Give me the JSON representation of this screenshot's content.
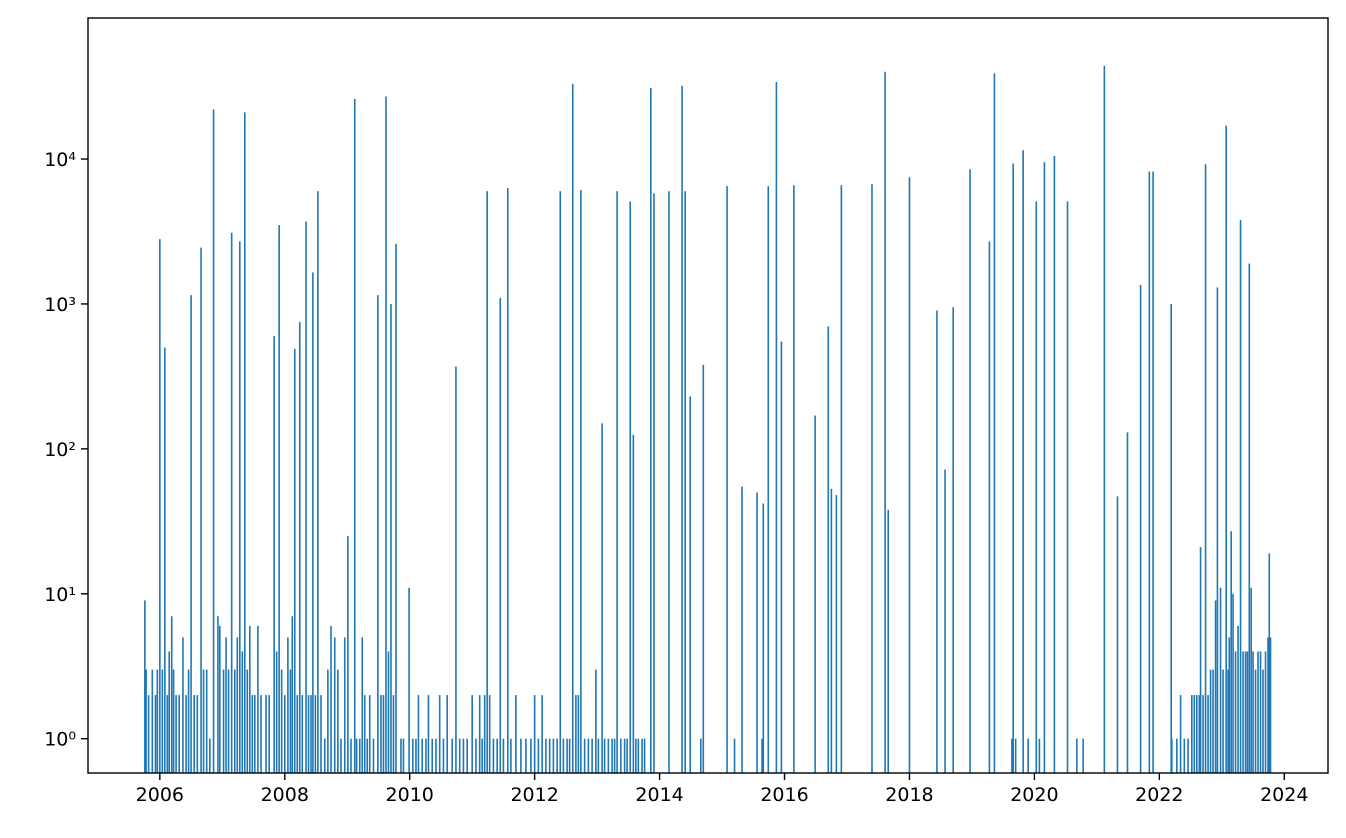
{
  "chart_data": {
    "type": "bar",
    "color": "#1f77b4",
    "log_y": true,
    "grid": false,
    "xlim": [
      2004.85,
      2024.7
    ],
    "xticks": [
      2006,
      2008,
      2010,
      2012,
      2014,
      2016,
      2018,
      2020,
      2022,
      2024
    ],
    "ylim": [
      0.58,
      94000
    ],
    "yticks": [
      {
        "value": 1,
        "label": "10⁰"
      },
      {
        "value": 10,
        "label": "10¹"
      },
      {
        "value": 100,
        "label": "10²"
      },
      {
        "value": 1000,
        "label": "10³"
      },
      {
        "value": 10000,
        "label": "10⁴"
      }
    ],
    "x": [
      2005.76,
      2006.0,
      2006.08,
      2006.19,
      2006.37,
      2006.5,
      2006.66,
      2006.86,
      2006.93,
      2007.15,
      2007.28,
      2007.36,
      2007.44,
      2007.57,
      2007.83,
      2007.91,
      2008.05,
      2008.16,
      2008.24,
      2008.34,
      2008.45,
      2008.53,
      2008.74,
      2009.01,
      2009.12,
      2009.24,
      2009.49,
      2009.62,
      2009.7,
      2009.78,
      2009.99,
      2010.74,
      2011.24,
      2011.45,
      2011.57,
      2012.41,
      2012.61,
      2012.74,
      2012.98,
      2013.08,
      2013.32,
      2013.53,
      2013.58,
      2013.86,
      2013.91,
      2014.15,
      2014.36,
      2014.41,
      2014.49,
      2014.7,
      2015.08,
      2015.32,
      2015.56,
      2015.66,
      2015.74,
      2015.87,
      2015.95,
      2016.15,
      2016.49,
      2016.7,
      2016.75,
      2016.83,
      2016.91,
      2017.4,
      2017.61,
      2017.66,
      2018.0,
      2018.44,
      2018.57,
      2018.7,
      2018.97,
      2019.28,
      2019.36,
      2019.66,
      2019.82,
      2020.03,
      2020.16,
      2020.32,
      2020.53,
      2021.12,
      2021.33,
      2021.49,
      2021.7,
      2021.84,
      2021.9,
      2022.19,
      2022.66,
      2022.74,
      2022.93,
      2022.98,
      2023.07,
      2023.15,
      2023.3,
      2023.44,
      2023.47,
      2023.76,
      2005.78,
      2005.82,
      2005.88,
      2005.93,
      2005.96,
      2006.04,
      2006.12,
      2006.15,
      2006.22,
      2006.26,
      2006.31,
      2006.42,
      2006.46,
      2006.55,
      2006.6,
      2006.7,
      2006.75,
      2006.8,
      2006.96,
      2007.02,
      2007.06,
      2007.1,
      2007.2,
      2007.24,
      2007.32,
      2007.4,
      2007.48,
      2007.52,
      2007.62,
      2007.7,
      2007.75,
      2007.87,
      2007.95,
      2008.0,
      2008.09,
      2008.12,
      2008.2,
      2008.28,
      2008.38,
      2008.42,
      2008.49,
      2008.58,
      2008.64,
      2008.69,
      2008.8,
      2008.85,
      2008.9,
      2008.96,
      2009.06,
      2009.15,
      2009.2,
      2009.28,
      2009.32,
      2009.36,
      2009.42,
      2009.54,
      2009.58,
      2009.66,
      2009.74,
      2009.86,
      2009.9,
      2010.05,
      2010.1,
      2010.14,
      2010.2,
      2010.26,
      2010.3,
      2010.36,
      2010.42,
      2010.48,
      2010.54,
      2010.6,
      2010.68,
      2010.8,
      2010.86,
      2010.92,
      2011.0,
      2011.06,
      2011.12,
      2011.16,
      2011.2,
      2011.28,
      2011.34,
      2011.4,
      2011.5,
      2011.62,
      2011.7,
      2011.78,
      2011.86,
      2011.94,
      2012.0,
      2012.06,
      2012.12,
      2012.18,
      2012.24,
      2012.3,
      2012.36,
      2012.46,
      2012.52,
      2012.56,
      2012.66,
      2012.7,
      2012.8,
      2012.86,
      2012.92,
      2013.02,
      2013.12,
      2013.18,
      2013.24,
      2013.28,
      2013.38,
      2013.44,
      2013.48,
      2013.62,
      2013.66,
      2013.72,
      2013.76,
      2014.66,
      2015.2,
      2015.64,
      2019.64,
      2019.7,
      2019.9,
      2020.08,
      2020.68,
      2020.78,
      2022.2,
      2022.28,
      2022.34,
      2022.4,
      2022.46,
      2022.52,
      2022.56,
      2022.6,
      2022.64,
      2022.7,
      2022.78,
      2022.82,
      2022.86,
      2022.9,
      2023.02,
      2023.1,
      2023.12,
      2023.18,
      2023.22,
      2023.26,
      2023.34,
      2023.38,
      2023.41,
      2023.5,
      2023.54,
      2023.58,
      2023.62,
      2023.66,
      2023.7,
      2023.74,
      2023.78
    ],
    "values": [
      9,
      2800,
      500,
      7,
      5,
      1150,
      2450,
      22000,
      7,
      3100,
      2700,
      21000,
      6,
      6,
      600,
      3500,
      5,
      490,
      750,
      3700,
      1650,
      6000,
      6,
      25,
      26000,
      5,
      1150,
      27000,
      1000,
      2600,
      11,
      370,
      6000,
      1100,
      6300,
      6000,
      33000,
      6100,
      3,
      150,
      6000,
      5100,
      125,
      31000,
      5800,
      6000,
      32000,
      6000,
      230,
      380,
      6500,
      55,
      50,
      42,
      6500,
      34000,
      550,
      6600,
      170,
      700,
      53,
      48,
      6600,
      6700,
      40000,
      38,
      7500,
      900,
      72,
      950,
      8500,
      2700,
      39000,
      9300,
      11500,
      5100,
      9500,
      10500,
      5100,
      44000,
      47,
      130,
      1350,
      8200,
      8200,
      1000,
      21,
      9200,
      1300,
      11,
      17000,
      27,
      3800,
      1900,
      11,
      19,
      3,
      2,
      3,
      2,
      3,
      3,
      2,
      4,
      3,
      2,
      2,
      2,
      3,
      2,
      2,
      3,
      3,
      1,
      6,
      3,
      5,
      3,
      3,
      5,
      4,
      3,
      2,
      2,
      2,
      2,
      2,
      4,
      3,
      2,
      3,
      7,
      2,
      2,
      2,
      2,
      2,
      2,
      1,
      3,
      5,
      3,
      1,
      5,
      1,
      1,
      1,
      2,
      1,
      2,
      1,
      2,
      2,
      4,
      2,
      1,
      1,
      1,
      1,
      2,
      1,
      1,
      2,
      1,
      1,
      2,
      1,
      2,
      1,
      1,
      1,
      1,
      2,
      1,
      2,
      1,
      2,
      2,
      1,
      1,
      1,
      1,
      2,
      1,
      1,
      1,
      2,
      1,
      2,
      1,
      1,
      1,
      1,
      1,
      1,
      1,
      2,
      2,
      1,
      1,
      1,
      1,
      1,
      1,
      1,
      1,
      1,
      1,
      1,
      1,
      1,
      1,
      1,
      1,
      1,
      1,
      1,
      1,
      1,
      1,
      1,
      1,
      1,
      1,
      2,
      1,
      1,
      2,
      2,
      2,
      2,
      2,
      2,
      3,
      3,
      9,
      3,
      3,
      5,
      10,
      4,
      6,
      4,
      4,
      4,
      4,
      3,
      4,
      4,
      3,
      4,
      5,
      5
    ]
  }
}
